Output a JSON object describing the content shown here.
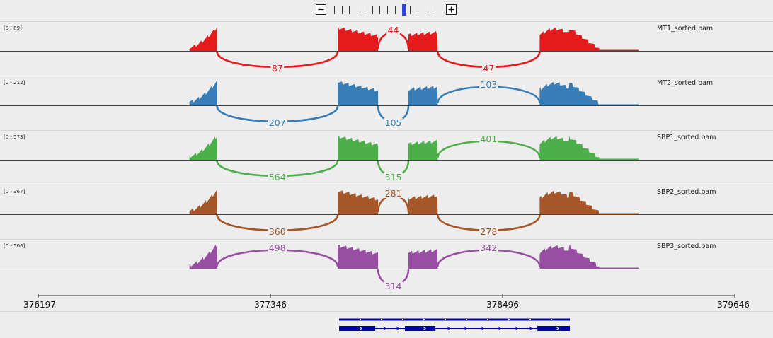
{
  "zoom": {
    "level_count": 14,
    "current_level": 9
  },
  "locus": {
    "start": 376197,
    "end": 379646
  },
  "colors": {
    "MT1": "#e41a1c",
    "MT2": "#377eb8",
    "SBP1": "#4daf4a",
    "SBP2": "#a65628",
    "SBP3": "#984ea3",
    "gene": "#0000aa"
  },
  "tracks": [
    {
      "id": "MT1",
      "name": "MT1_sorted.bam",
      "range_label": "[0 - 89]",
      "color": "#e41a1c",
      "junctions": [
        {
          "from": 377082,
          "to": 377680,
          "count": "87",
          "side": "below"
        },
        {
          "from": 377880,
          "to": 378030,
          "count": "44",
          "side": "above"
        },
        {
          "from": 378175,
          "to": 378680,
          "count": "47",
          "side": "below"
        }
      ]
    },
    {
      "id": "MT2",
      "name": "MT2_sorted.bam",
      "range_label": "[0 - 212]",
      "color": "#377eb8",
      "junctions": [
        {
          "from": 377082,
          "to": 377680,
          "count": "207",
          "side": "below"
        },
        {
          "from": 377880,
          "to": 378030,
          "count": "105",
          "side": "below"
        },
        {
          "from": 378175,
          "to": 378680,
          "count": "103",
          "side": "above"
        }
      ]
    },
    {
      "id": "SBP1",
      "name": "SBP1_sorted.bam",
      "range_label": "[0 - 573]",
      "color": "#4daf4a",
      "junctions": [
        {
          "from": 377082,
          "to": 377680,
          "count": "564",
          "side": "below"
        },
        {
          "from": 377880,
          "to": 378030,
          "count": "315",
          "side": "below"
        },
        {
          "from": 378175,
          "to": 378680,
          "count": "401",
          "side": "above"
        }
      ]
    },
    {
      "id": "SBP2",
      "name": "SBP2_sorted.bam",
      "range_label": "[0 - 367]",
      "color": "#a65628",
      "junctions": [
        {
          "from": 377082,
          "to": 377680,
          "count": "360",
          "side": "below"
        },
        {
          "from": 377880,
          "to": 378030,
          "count": "281",
          "side": "above"
        },
        {
          "from": 378175,
          "to": 378680,
          "count": "278",
          "side": "below"
        }
      ]
    },
    {
      "id": "SBP3",
      "name": "SBP3_sorted.bam",
      "range_label": "[0 - 506]",
      "color": "#984ea3",
      "junctions": [
        {
          "from": 377082,
          "to": 377680,
          "count": "498",
          "side": "above"
        },
        {
          "from": 377880,
          "to": 378030,
          "count": "314",
          "side": "below"
        },
        {
          "from": 378175,
          "to": 378680,
          "count": "342",
          "side": "above"
        }
      ]
    }
  ],
  "ruler": {
    "ticks": [
      "376197",
      "377346",
      "378496",
      "379646"
    ]
  }
}
